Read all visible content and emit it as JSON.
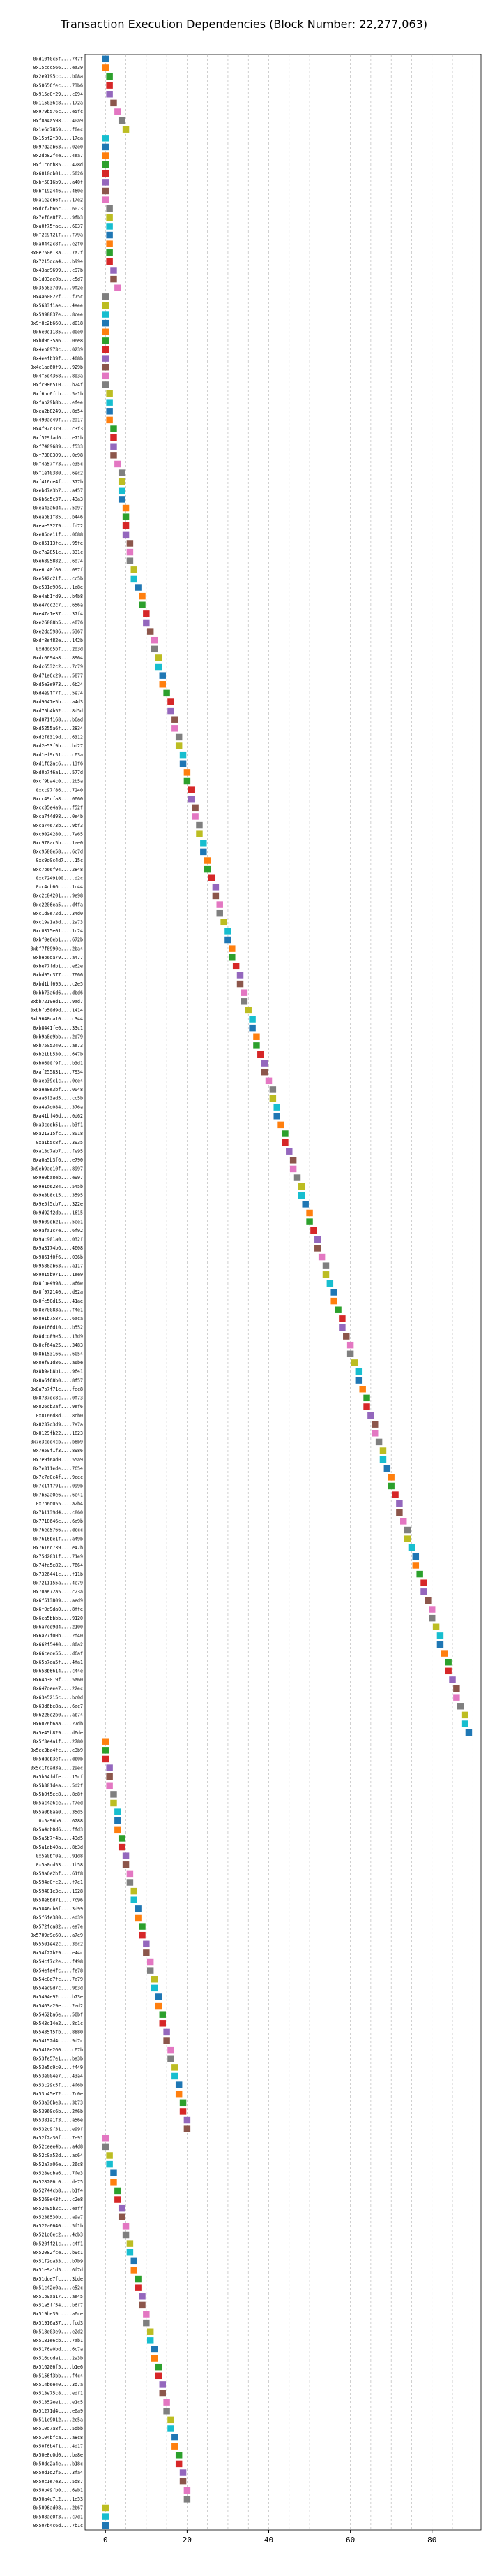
{
  "chart_data": {
    "type": "scatter",
    "title": "Transaction Execution Dependencies (Block Number: 22,277,063)",
    "xlabel": "",
    "ylabel": "",
    "xlim": [
      -5,
      92
    ],
    "xticks": [
      0,
      20,
      40,
      60,
      80
    ],
    "grid": true,
    "categories": [
      "0xd10f0c5f....747f",
      "0x15ccc566....ea39",
      "0x2e9195cc....b08a",
      "0x50656fec....73b6",
      "0x915c0f29....c094",
      "0x115036c8....172a",
      "0x979b576c....e5fc",
      "0xf8a4a598....40a9",
      "0x1e6d7859....f0ec",
      "0x15bf2f30....17ea",
      "0x97d2ab63....02e0",
      "0x2db82f4e....4ea7",
      "0xf1ccdb85....428d",
      "0x6010db01....5026",
      "0xbf5016b9....a40f",
      "0xbf192446....460e",
      "0xa1e2cb6f....17e2",
      "0xdcf2b66c....6073",
      "0x7ef6a8f7....9fb3",
      "0xa0f75fae....6037",
      "0xf2c9f21f....f79a",
      "0xa0442c8f....e2f0",
      "0x0e750e13a....7a7f",
      "0x7215dca4....b994",
      "0x43ae9699....c97b",
      "0x1d03ae0b....c5d7",
      "0x35b837d9....9f2e",
      "0x4a60022f....f75c",
      "0x5633f1ae....4aee",
      "0x5998837e....8cee",
      "0x9f8c2b660....d018",
      "0x6e0e1185....d0e0",
      "0xbd9d35a6....06e8",
      "0x4eb0973c....0239",
      "0x4eefb39f....408b",
      "0x4c1ae60f9....929b",
      "0x4f5d4368....8d3a",
      "0xfc986510....b24f",
      "0xf6bc6fcb....5a1b",
      "0xfab29b8b....ef4e",
      "0xea2b8249....8d54",
      "0x490ae49f....2a17",
      "0x4f92c379....c3f3",
      "0xf529fad6....e71b",
      "0xf7409689....f533",
      "0xf7380309....0c98",
      "0xf4a57f73....e35c",
      "0xf1ef0380....6ec2",
      "0xf416ce4f....377b",
      "0xebd7a3b7....a457",
      "0x6b6c5c37....43a3",
      "0xea43a6d4....5a97",
      "0xeab81f85....b446",
      "0xeae53279....fd72",
      "0xe05de11f....0688",
      "0xe85113fe....95fe",
      "0xe7a2851e....331c",
      "0xe6895882....6d74",
      "0xe6c40f60....097f",
      "0xe542c21f....cc5b",
      "0xe531e906....1a8e",
      "0xe4ab1fd9....b4b8",
      "0xe47cc2c7....656a",
      "0xe47a1e37....37f4",
      "0xe26808b5....e076",
      "0xe2dd5986....5367",
      "0xdf8ef82e....142b",
      "0xdddd5bf....2d3d",
      "0xdc6694a8....8964",
      "0xdc6532c2....7c79",
      "0xd71a6c29....5877",
      "0xd5e3e973....6b24",
      "0xd4e9ff7f....5e74",
      "0xd9647e5b....a4d3",
      "0xd75b4b52....8d5d",
      "0xd071f168....b6ad",
      "0xd5255a6f....2834",
      "0xd2f8319d....6312",
      "0xd2e53f9b....bd27",
      "0xd1ef9c51....c63a",
      "0xd1f62ac6....13f6",
      "0xd0b7f6a1....577d",
      "0xcf9ba4c0....2b5a",
      "0xcc97f86....7240",
      "0xcc49cfa8....0660",
      "0xcc35e4a9....f52f",
      "0xca7f4d98....0e4b",
      "0xca74673b....9bf3",
      "0xc9024280....7a65",
      "0xc970ac5b....1ae0",
      "0xc9580e58....6c7d",
      "0xc9d0c4d7....15c",
      "0xc7b66f94....2848",
      "0xc7249100....d2c",
      "0xc4cb66c....1c44",
      "0xc2c84201....9e98",
      "0xc2206ea5....d4fa",
      "0xc1d0e72d....34d0",
      "0xc19a1a3d....2a73",
      "0xc0375e01....1c24",
      "0xbf0e6eb1....672b",
      "0xbf7f8990e....2ba4",
      "0xbeb6da79....a477",
      "0xbe77fdb1....e62e",
      "0xbd95c377....7666",
      "0xbd1bf695....c2e5",
      "0xbb73a6d6....dbd6",
      "0xbb7219ed1....9ad7",
      "0xbbfb50d9d....1414",
      "0xb9648da10....c344",
      "0xb8441fe0....33c1",
      "0xb9a8d9bb....2d79",
      "0xb7505340....ae73",
      "0xb21bb530....647b",
      "0xb0600f9f....b3d1",
      "0xaf255831....7934",
      "0xaeb39c1c....0ce4",
      "0xaea8e3bf....0048",
      "0xaa6f3ad5....cc5b",
      "0xa4a7d084....376a",
      "0xa41bf40d....0d62",
      "0xa3cddb51....b3f1",
      "0xa21315fc....8018",
      "0xa1b5c8f....3935",
      "0xa13d7ab7....fe95",
      "0xa0a5b3f6....e790",
      "0x9eb9ad10f....8997",
      "0x9e0ba8eb....e997",
      "0x9e1d6284....545b",
      "0x9e3b8c15....3595",
      "0x9e5f5cb7....322e",
      "0x9d92f2db....1615",
      "0x9b09db21....5ee1",
      "0x9afa1c7e....6f92",
      "0x9ac901a0....032f",
      "0x9a3174b6....4608",
      "0x9861f0f6....036b",
      "0x9588ab63....a117",
      "0x9015b971....1ee9",
      "0x8fbe4998....a66e",
      "0x8f972140....d92a",
      "0x8fe50d15....41ae",
      "0x8e70083a....f4e1",
      "0x8e1b7587....6aca",
      "0x8e166d10....b552",
      "0x8dcd89e5....13d9",
      "0x8cf64a25....3483",
      "0x8b153166....6054",
      "0x8ef91d86....a6be",
      "0x8b9ab8b1....9641",
      "0x8a6f68b0....8f57",
      "0x8a7b7f71e....fec8",
      "0x8737dc8c....0f73",
      "0x826cb3af....9ef6",
      "0x8166d8d....8cb0",
      "0x8237d3d9....7a7a",
      "0x8129fb22....1823",
      "0x7e3cdd4cb....b8b9",
      "0x7e59f1f3....8986",
      "0x7e9f6ad0....55a9",
      "0x7e311ede....7654",
      "0x7c7a0c4f....9cec",
      "0x7c1ff791....099b",
      "0x7b52a0e6....6e41",
      "0x7b6d055....a2b4",
      "0x7b1139d4....c860",
      "0x7718646e....6a9b",
      "0x76ee5766....dccc",
      "0x7616be1f....a49b",
      "0x7616c739....e47b",
      "0x75d2031f....71e9",
      "0x74fe5e82....7664",
      "0x7326441c....f11b",
      "0x7211155a....4e79",
      "0x70ae72a5....c23a",
      "0x6f513809....aed9",
      "0x6f0e9da0....8ffe",
      "0x6ea5bbbb....9120",
      "0x6a7cd9d4....2100",
      "0x6a27f00b....2d40",
      "0x662f5440....80a2",
      "0x66cede55....d6af",
      "0x65b7ea5f....4fa1",
      "0x658b6614....c44e",
      "0x64b3019f....5a60",
      "0x647deee7....22ec",
      "0x63e5215c....bc0d",
      "0x63d6be8a....6ac7",
      "0x6228e2b0....ab74",
      "0x6026b6aa....27db",
      "0x5e45b829....d6de",
      "0x5f3e4a1f....2780",
      "0x5ee3ba4fc....e3b9",
      "0x5ddeb3ef....db0b",
      "0x5c1fdad3a....29ec",
      "0x5b54fdfe....15cf",
      "0x5b301dea....5d2f",
      "0x5b0f5ec8....8e8f",
      "0x5ac4a6ce....f7ed",
      "0x5a0b8aa0....35d5",
      "0x5a96b0....6288",
      "0x5a4db0d6....ffd3",
      "0x5a5b7f4b....43d5",
      "0x5a1ab40a....8b3d",
      "0x5a0bf0a....91d8",
      "0x5a0dd53....1b58",
      "0x59a6e2bf....61f8",
      "0x594a0fc2....f7e1",
      "0x59481e3e....1928",
      "0x58e6bd71....7c96",
      "0x5846db0f....3d99",
      "0x5f6fe380....ed39",
      "0x572fca82....ea7e",
      "0x5709e9e60....a7e9",
      "0x5501e42c....3dc2",
      "0x54f22b29....e44c",
      "0x54cf7c2e....f498",
      "0x54efa4fc....fe78",
      "0x54e0d7fc....7a79",
      "0x54ac9d7c....9b3d",
      "0x5494e92c....b73e",
      "0x5463a29e....2ad2",
      "0x5452ba6e....50bf",
      "0x543c14e2....8c1c",
      "0x5435f5fb....8880",
      "0x54152d4c....9d7c",
      "0x5410e260....c67b",
      "0x53fe57e1....ba3b",
      "0x53e5c9c0....f449",
      "0x53e004e7....43a4",
      "0x53c29c5f....4f6b",
      "0x53b45e72....7c0e",
      "0x53a36be3....3b73",
      "0x53960c6b....2f6b",
      "0x5381a1f3....a56e",
      "0x532c9f31....e99f",
      "0x52f2a30f....7e91",
      "0x52ceee4b....a4d8",
      "0x52c0a52d....ac64",
      "0x52a7a06e....26c8",
      "0x528edba6....7fe3",
      "0x528206c0....de75",
      "0x52744cb8....b1f4",
      "0x5260e43f....c2e8",
      "0x52495b2c....eaff",
      "0x5238530b....a9a7",
      "0x522a6640....5f1b",
      "0x521d6ec2....4cb3",
      "0x520ff21c....c4f1",
      "0x52082fce....b9c1",
      "0x51f2da33....b7b9",
      "0x51e9a1d5....6f7d",
      "0x51dce7fc....3bde",
      "0x51c42e0a....e52c",
      "0x51b9aa17....ae45",
      "0x51a5ff54....b6f7",
      "0x519be39c....a6ce",
      "0x51916a37....fcd3",
      "0x518d03e9....e2d2",
      "0x5181e6cb....7ab1",
      "0x5176a0bd....6c7a",
      "0x516dcda1....2a3b",
      "0x516206f5....b1e6",
      "0x5156f3bb....f4c4",
      "0x514b6e40....3d7a",
      "0x513e75c8....edf1",
      "0x51352ee1....e1c5",
      "0x51271d4c....e0a9",
      "0x511c9012....2c5a",
      "0x510d7a8f....5dbb",
      "0x5104bfca....a8c8",
      "0x50f6b4f1....4d17",
      "0x50e8c0d0....ba8e",
      "0x50dc2a4e....b18c",
      "0x50d1d2f5....3fa4",
      "0x50c1e7e3....5d87",
      "0x50b49fb0....6ab1",
      "0x50a4d7c2....1e53",
      "0x5096ad08....2b67",
      "0x508ae0f3....c7d1",
      "0x507b4c6d....7b1c",
      "0x506e47f0....f3a6",
      "0x50647f58....3c4e",
      "0x50574ed1....20d8",
      "0x504ab1c7....d63c",
      "0x503f4c4d....8f0e",
      "0x50363d44....42b1",
      "0x5029ed8a....c85f",
      "0x501dd47e....9a66",
      "0x50128c36....d4f6",
      "0x5006f9d3....2e70",
      "0x4ffc08e3....c3b2",
      "0x4feff7c5....da71"
    ],
    "series": [
      {
        "x": [
          0,
          0,
          1,
          1,
          1,
          2,
          3,
          4,
          5,
          0,
          0,
          0,
          0,
          0,
          0,
          0,
          0,
          1,
          1,
          1,
          1,
          1,
          1,
          1,
          2,
          2,
          3,
          0,
          0,
          0,
          0,
          0,
          0,
          0,
          0,
          0,
          0,
          0,
          1,
          1,
          1,
          1,
          2,
          2,
          2,
          2,
          3,
          4,
          4,
          4,
          4,
          5,
          5,
          5,
          5,
          6,
          6,
          6,
          7,
          7,
          8,
          9,
          9,
          10,
          10,
          11,
          12,
          12,
          13,
          13,
          14,
          14,
          15,
          16,
          16,
          17,
          17,
          18,
          18,
          19,
          19,
          20,
          20,
          21,
          21,
          22,
          22,
          23,
          23,
          24,
          24,
          25,
          25,
          26,
          27,
          27,
          28,
          28,
          29,
          30,
          30,
          31,
          31,
          32,
          33,
          33,
          34,
          34,
          35,
          36,
          36,
          37,
          37,
          38,
          39,
          39,
          40,
          41,
          41,
          42,
          42,
          43,
          44,
          44,
          45,
          46,
          46,
          47,
          48,
          48,
          49,
          50,
          50,
          51,
          52,
          52,
          53,
          54,
          54,
          55,
          56,
          56,
          57,
          58,
          58,
          59,
          60,
          60,
          61,
          62,
          62,
          63,
          64,
          64,
          65,
          66,
          66,
          67,
          68,
          68,
          69,
          70,
          70,
          71,
          72,
          72,
          73,
          74,
          74,
          75,
          76,
          76,
          77,
          78,
          78,
          79,
          80,
          80,
          81,
          82,
          82,
          83,
          84,
          84,
          85,
          86,
          86,
          87,
          88,
          88,
          89,
          0,
          0,
          0,
          1,
          1,
          1,
          2,
          2,
          3,
          3,
          3,
          4,
          4,
          5,
          5,
          6,
          6,
          7,
          7,
          8,
          8,
          9,
          9,
          10,
          10,
          11,
          11,
          12,
          12,
          13,
          13,
          14,
          14,
          15,
          15,
          16,
          16,
          17,
          17,
          18,
          18,
          19,
          19,
          20,
          20,
          0,
          0,
          1,
          1,
          2,
          2,
          3,
          3,
          4,
          4,
          5,
          5,
          6,
          6,
          7,
          7,
          8,
          8,
          9,
          9,
          10,
          10,
          11,
          11,
          12,
          12,
          13,
          13,
          14,
          14,
          15,
          15,
          16,
          16,
          17,
          17,
          18,
          18,
          19,
          19,
          20,
          20,
          0,
          0,
          0
        ],
        "colors": [
          "#1f77b4",
          "#ff7f0e",
          "#2ca02c",
          "#d62728",
          "#9467bd",
          "#8c564b",
          "#e377c2",
          "#7f7f7f",
          "#bcbd22",
          "#17becf"
        ]
      }
    ]
  }
}
